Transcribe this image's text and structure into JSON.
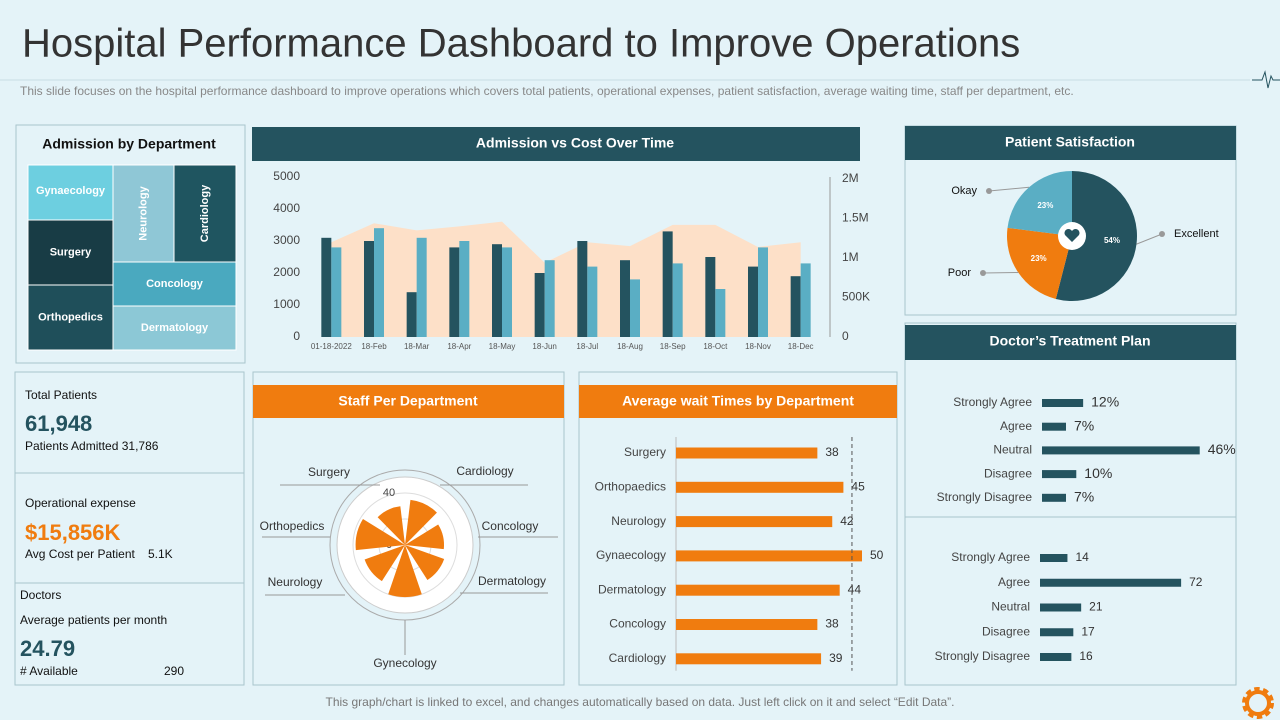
{
  "title": "Hospital Performance Dashboard to Improve Operations",
  "subtitle": "This slide focuses on the hospital performance dashboard to improve operations which covers total patients, operational expenses, patient satisfaction, average waiting time, staff per department, etc.",
  "footer": "This graph/chart is linked to excel,  and changes automatically based on data. Just left click on it and select “Edit Data”.",
  "treemap": {
    "title": "Admission  by Department",
    "labels": [
      "Gynaecology",
      "Surgery",
      "Orthopedics",
      "Neurology",
      "Cardiology",
      "Concology",
      "Dermatology"
    ]
  },
  "kpis": {
    "total_patients": {
      "label": "Total Patients",
      "value": "61,948",
      "sub": "Patients Admitted 31,786"
    },
    "operational_expense": {
      "label": "Operational expense",
      "value": "$15,856K",
      "sub_label": "Avg  Cost per Patient",
      "sub_value": "5.1K"
    },
    "doctors": {
      "label": "Doctors",
      "sub_label": "Average patients per month",
      "value": "24.79",
      "avail_label": "# Available",
      "avail_value": "290"
    }
  },
  "chart_data": [
    {
      "type": "combo",
      "title": "Admission  vs Cost Over Time",
      "categories": [
        "01-18-2022",
        "18-Feb",
        "18-Mar",
        "18-Apr",
        "18-May",
        "18-Jun",
        "18-Jul",
        "18-Aug",
        "18-Sep",
        "18-Oct",
        "18-Nov",
        "18-Dec"
      ],
      "series": [
        {
          "kind": "bar",
          "color": "#24535f",
          "values": [
            3100,
            3000,
            1400,
            2800,
            2900,
            2000,
            3000,
            2400,
            3300,
            2500,
            2200,
            1900
          ]
        },
        {
          "kind": "bar",
          "color": "#5aaec4",
          "values": [
            2800,
            3400,
            3100,
            3000,
            2800,
            2400,
            2200,
            1800,
            2300,
            1500,
            2800,
            2300
          ]
        },
        {
          "kind": "area",
          "axis": "y2",
          "color": "#fde0c8",
          "values": [
            1200000,
            1440000,
            1350000,
            1400000,
            1460000,
            940000,
            1200000,
            1150000,
            1420000,
            1420000,
            1140000,
            1200000
          ]
        }
      ],
      "ylim": [
        0,
        5000
      ],
      "yticks": [
        0,
        1000,
        2000,
        3000,
        4000,
        5000
      ],
      "y2lim": [
        0,
        2000000
      ],
      "y2ticks": [
        0,
        {
          "value": 500000,
          "label": "500K"
        },
        {
          "value": 1000000,
          "label": "1M"
        },
        {
          "value": 1500000,
          "label": "1.5M"
        },
        {
          "value": 2000000,
          "label": "2M"
        }
      ]
    },
    {
      "type": "pie",
      "title": "Patient Satisfaction",
      "categories": [
        "Excellent",
        "Poor",
        "Okay"
      ],
      "values": [
        54,
        23,
        23
      ],
      "value_labels": [
        "54%",
        "23%",
        "23%"
      ],
      "colors": [
        "#24535f",
        "#f07c0f",
        "#5aaec4"
      ]
    },
    {
      "type": "polar",
      "title": "Staff Per Department",
      "categories": [
        "Cardiology",
        "Concology",
        "Dermatology",
        "Gynecology",
        "Neurology",
        "Orthopedics",
        "Surgery"
      ],
      "values": [
        35,
        30,
        32,
        40,
        33,
        38,
        30
      ],
      "color": "#f07c0f",
      "rlim": [
        0,
        50
      ],
      "rticks": [
        0,
        20,
        40
      ]
    },
    {
      "type": "hbar",
      "title": "Average wait  Times by Department",
      "categories": [
        "Surgery",
        "Orthopaedics",
        "Neurology",
        "Gynaecology",
        "Dermatology",
        "Concology",
        "Cardiology"
      ],
      "values": [
        38,
        45,
        42,
        50,
        44,
        38,
        39
      ],
      "color": "#f07c0f",
      "xlim": [
        0,
        50
      ],
      "reference_value": 47.3
    },
    {
      "type": "hbar",
      "title": "Doctor’s Treatment Plan",
      "categories": [
        "Strongly Agree",
        "Agree",
        "Neutral",
        "Disagree",
        "Strongly Disagree"
      ],
      "values": [
        12,
        7,
        46,
        10,
        7
      ],
      "value_labels": [
        "12%",
        "7%",
        "46%",
        "10%",
        "7%"
      ],
      "color": "#24535f",
      "xlim": [
        0,
        56
      ]
    },
    {
      "type": "hbar",
      "categories": [
        "Strongly Agree",
        "Agree",
        "Neutral",
        "Disagree",
        "Strongly Disagree"
      ],
      "values": [
        14,
        72,
        21,
        17,
        16
      ],
      "color": "#24535f",
      "xlim": [
        0,
        100
      ]
    }
  ]
}
